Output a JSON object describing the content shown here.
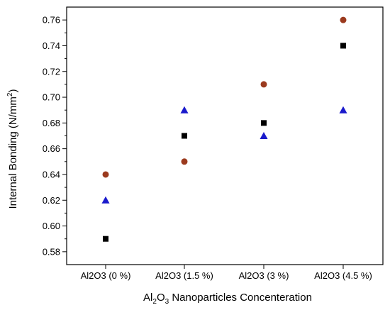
{
  "chart_data": {
    "type": "scatter",
    "title": "",
    "xlabel": "Al2O3 Nanoparticles Concenteration",
    "ylabel": "Internal Bonding (N/mm2)",
    "xlabel_parts": {
      "a": "Al",
      "sub1": "2",
      "b": "O",
      "sub2": "3",
      "c": " Nanoparticles Concenteration"
    },
    "ylabel_parts": {
      "a": "Internal Bonding (N/mm",
      "sup": "2",
      "b": ")"
    },
    "categories": [
      "Al2O3 (0 %)",
      "Al2O3 (1.5 %)",
      "Al2O3 (3 %)",
      "Al2O3 (4.5 %)"
    ],
    "ylim": [
      0.57,
      0.77
    ],
    "yticks": [
      "0.58",
      "0.60",
      "0.62",
      "0.64",
      "0.66",
      "0.68",
      "0.70",
      "0.72",
      "0.74",
      "0.76"
    ],
    "grid": false,
    "legend": "none",
    "series": [
      {
        "marker": "square",
        "color": "#000000",
        "values": [
          0.59,
          0.67,
          0.68,
          0.74
        ]
      },
      {
        "marker": "circle",
        "color": "#9b3a1e",
        "values": [
          0.64,
          0.65,
          0.71,
          0.76
        ]
      },
      {
        "marker": "triangle",
        "color": "#1a1acc",
        "values": [
          0.62,
          0.69,
          0.67,
          0.69
        ]
      }
    ]
  }
}
